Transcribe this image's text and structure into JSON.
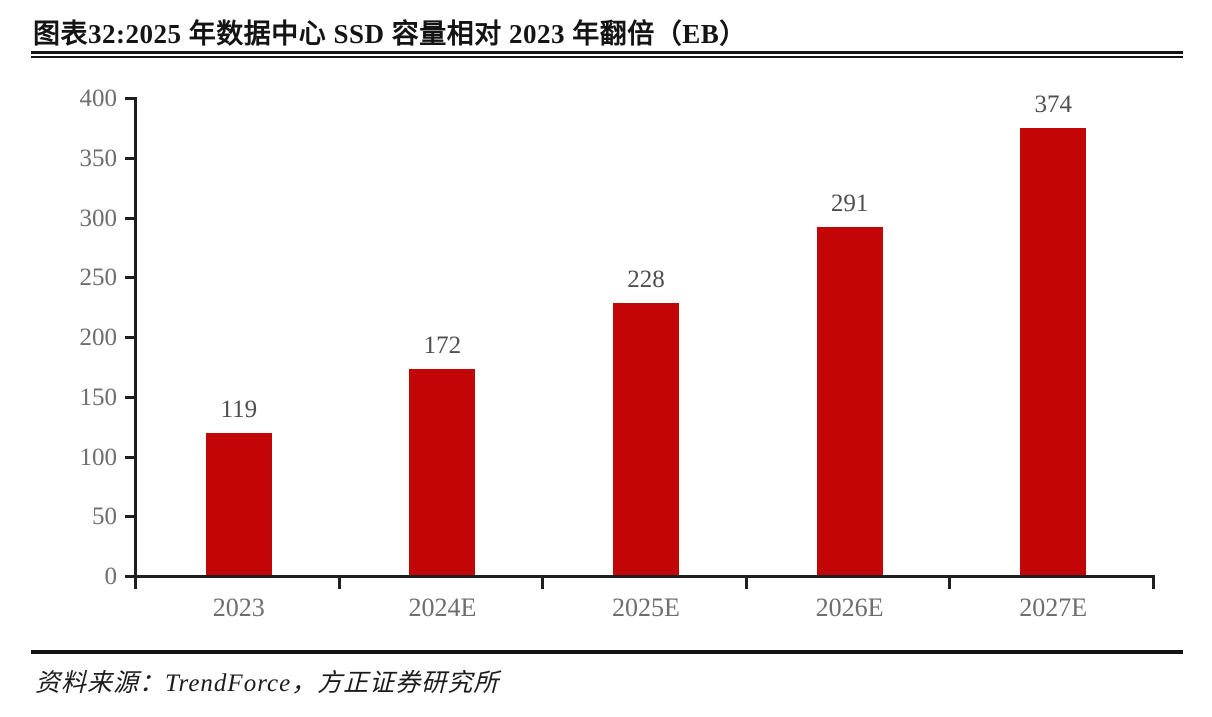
{
  "page": {
    "title": "图表32:2025 年数据中心 SSD 容量相对 2023 年翻倍（EB）",
    "source": "资料来源：TrendForce，方正证券研究所"
  },
  "colors": {
    "bar": "#c20505",
    "axis": "#1f1f1f",
    "tick_label": "#6e6e6e",
    "value_label": "#4f4f4f"
  },
  "chart_data": {
    "type": "bar",
    "title": "图表32:2025 年数据中心 SSD 容量相对 2023 年翻倍（EB）",
    "categories": [
      "2023",
      "2024E",
      "2025E",
      "2026E",
      "2027E"
    ],
    "values": [
      119,
      172,
      228,
      291,
      374
    ],
    "data_labels": [
      "119",
      "172",
      "228",
      "291",
      "374"
    ],
    "xlabel": "",
    "ylabel": "",
    "ylim": [
      0,
      400
    ],
    "yticks": [
      0,
      50,
      100,
      150,
      200,
      250,
      300,
      350,
      400
    ],
    "grid": false,
    "legend": "none",
    "unit": "EB"
  }
}
